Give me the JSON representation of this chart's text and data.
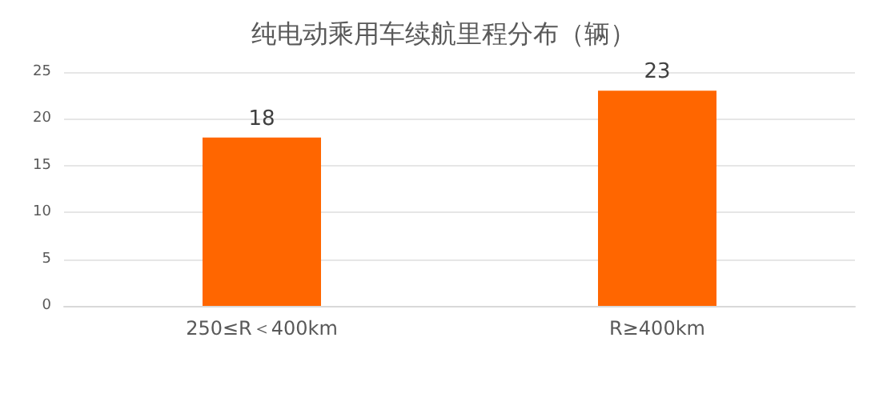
{
  "chart_data": {
    "type": "bar",
    "title": "纯电动乘用车续航里程分布（辆）",
    "categories": [
      "250≤R＜400km",
      "R≥400km"
    ],
    "values": [
      18,
      23
    ],
    "color": "#ff6600",
    "ylim": [
      0,
      25
    ],
    "yticks": [
      0,
      5,
      10,
      15,
      20,
      25
    ],
    "grid": "y",
    "data_labels": true
  }
}
